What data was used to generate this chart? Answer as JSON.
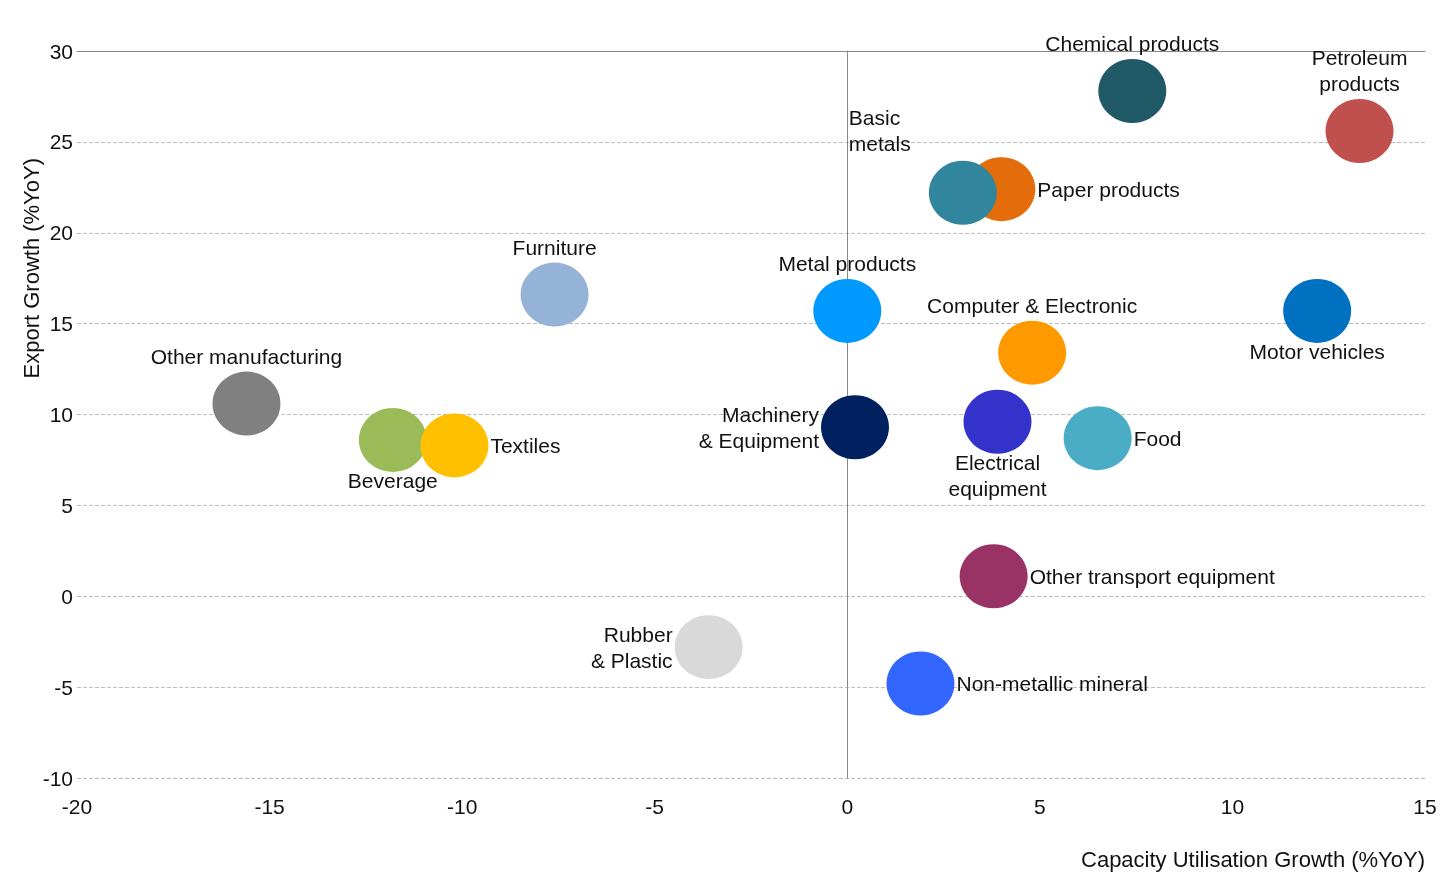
{
  "chart_data": {
    "type": "scatter",
    "xlabel": "Capacity Utilisation Growth (%YoY)",
    "ylabel": "Export Growth (%YoY)",
    "xlim": [
      -20,
      15
    ],
    "xticks": [
      -20,
      -15,
      -10,
      -5,
      0,
      5,
      10,
      15
    ],
    "ylim": [
      -10,
      30
    ],
    "yticks": [
      -10,
      -5,
      0,
      5,
      10,
      15,
      20,
      25,
      30
    ],
    "grid": "y",
    "legend": false,
    "marker": "circle",
    "series": [
      {
        "name": "Chemical products",
        "color": "#1f5a66",
        "x": [
          7.4
        ],
        "values": [
          27.8
        ]
      },
      {
        "name": "Petroleum\nproducts",
        "color": "#c0504d",
        "x": [
          13.3
        ],
        "values": [
          25.6
        ]
      },
      {
        "name": "Paper products",
        "color": "#e46c0a",
        "x": [
          4.0
        ],
        "values": [
          22.4
        ]
      },
      {
        "name": "Basic\nmetals",
        "color": "#31859c",
        "x": [
          3.0
        ],
        "values": [
          22.2
        ]
      },
      {
        "name": "Furniture",
        "color": "#95b3d7",
        "x": [
          -7.6
        ],
        "values": [
          16.6
        ]
      },
      {
        "name": "Metal products",
        "color": "#0099ff",
        "x": [
          0.0
        ],
        "values": [
          15.7
        ]
      },
      {
        "name": "Computer & Electronic",
        "color": "#ff9900",
        "x": [
          4.8
        ],
        "values": [
          13.4
        ]
      },
      {
        "name": "Motor vehicles",
        "color": "#0070c0",
        "x": [
          12.2
        ],
        "values": [
          15.7
        ]
      },
      {
        "name": "Other manufacturing",
        "color": "#808080",
        "x": [
          -15.6
        ],
        "values": [
          10.6
        ]
      },
      {
        "name": "Beverage",
        "color": "#9bbb59",
        "x": [
          -11.8
        ],
        "values": [
          8.6
        ]
      },
      {
        "name": "Textiles",
        "color": "#ffc000",
        "x": [
          -10.2
        ],
        "values": [
          8.3
        ]
      },
      {
        "name": "Machinery\n& Equipment",
        "color": "#002060",
        "x": [
          0.2
        ],
        "values": [
          9.3
        ]
      },
      {
        "name": "Electrical\nequipment",
        "color": "#3333cc",
        "x": [
          3.9
        ],
        "values": [
          9.6
        ]
      },
      {
        "name": "Food",
        "color": "#4bacc6",
        "x": [
          6.5
        ],
        "values": [
          8.7
        ]
      },
      {
        "name": "Other transport equipment",
        "color": "#993366",
        "x": [
          3.8
        ],
        "values": [
          1.1
        ]
      },
      {
        "name": "Rubber\n& Plastic",
        "color": "#d9d9d9",
        "x": [
          -3.6
        ],
        "values": [
          -2.8
        ]
      },
      {
        "name": "Non-metallic mineral",
        "color": "#3366ff",
        "x": [
          1.9
        ],
        "values": [
          -4.8
        ]
      }
    ]
  }
}
